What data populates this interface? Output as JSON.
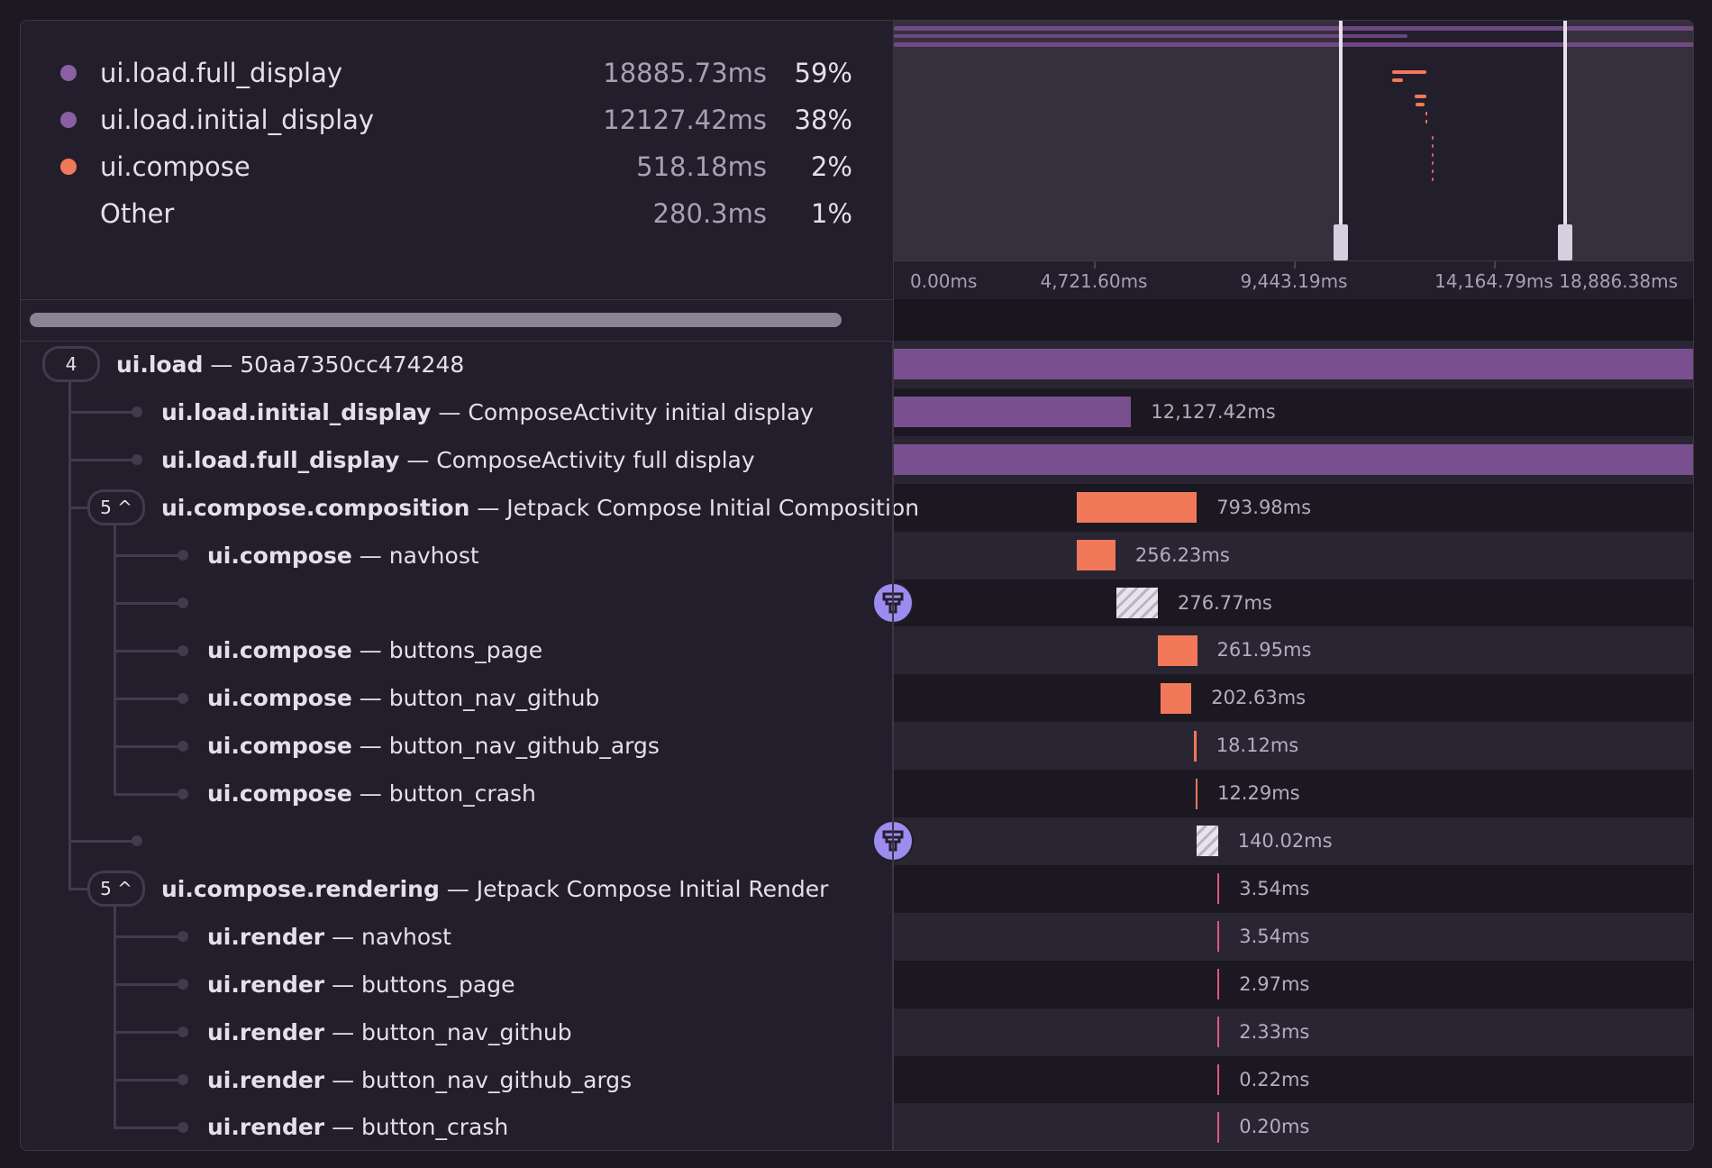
{
  "legend": [
    {
      "name": "ui.load.full_display",
      "duration": "18885.73ms",
      "percent": "59%",
      "color": "#8a5fa3"
    },
    {
      "name": "ui.load.initial_display",
      "duration": "12127.42ms",
      "percent": "38%",
      "color": "#8a5fa3"
    },
    {
      "name": "ui.compose",
      "duration": "518.18ms",
      "percent": "2%",
      "color": "#f2785a"
    },
    {
      "name": "Other",
      "duration": "280.3ms",
      "percent": "1%",
      "color": ""
    }
  ],
  "timeline": {
    "total_ms": 18886.38,
    "view_start_ms": 10553,
    "view_end_ms": 15841,
    "axis_labels": [
      "0.00ms",
      "4,721.60ms",
      "9,443.19ms",
      "14,164.79ms",
      "18,886.38ms"
    ],
    "colors": {
      "load": "#7a4f90",
      "compose": "#f2785a",
      "render": "#e2567e"
    }
  },
  "rows": [
    {
      "bold": "ui.load",
      "rest": " — 50aa7350cc474248",
      "depth": 0,
      "badge": "4",
      "start": 0,
      "dur": 18886.38,
      "kind": "load",
      "label": ""
    },
    {
      "bold": "ui.load.initial_display",
      "rest": " — ComposeActivity initial display",
      "depth": 1,
      "start": 0,
      "dur": 12127.42,
      "kind": "load",
      "label": "12,127.42ms"
    },
    {
      "bold": "ui.load.full_display",
      "rest": " — ComposeActivity full display",
      "depth": 1,
      "start": 0,
      "dur": 18885.73,
      "kind": "load",
      "label": ""
    },
    {
      "bold": "ui.compose.composition",
      "rest": " — Jetpack Compose Initial Composition",
      "depth": 1,
      "badge": "5 ^",
      "start": 11767,
      "dur": 793.98,
      "kind": "compose",
      "label": "793.98ms"
    },
    {
      "bold": "ui.compose",
      "rest": " — navhost",
      "depth": 2,
      "start": 11767,
      "dur": 256.23,
      "kind": "compose",
      "label": "256.23ms"
    },
    {
      "bold": "",
      "rest": "",
      "depth": 2,
      "gap": true,
      "start": 12027,
      "dur": 276.77,
      "kind": "gap",
      "label": "276.77ms"
    },
    {
      "bold": "ui.compose",
      "rest": " — buttons_page",
      "depth": 2,
      "start": 12301,
      "dur": 261.95,
      "kind": "compose",
      "label": "261.95ms"
    },
    {
      "bold": "ui.compose",
      "rest": " — button_nav_github",
      "depth": 2,
      "start": 12323,
      "dur": 202.63,
      "kind": "compose",
      "label": "202.63ms"
    },
    {
      "bold": "ui.compose",
      "rest": " — button_nav_github_args",
      "depth": 2,
      "start": 12540,
      "dur": 18.12,
      "kind": "compose",
      "label": "18.12ms"
    },
    {
      "bold": "ui.compose",
      "rest": " — button_crash",
      "depth": 2,
      "start": 12554,
      "dur": 12.29,
      "kind": "compose",
      "label": "12.29ms"
    },
    {
      "bold": "",
      "rest": "",
      "depth": 1,
      "gap": true,
      "start": 12561,
      "dur": 140.02,
      "kind": "gap",
      "label": "140.02ms"
    },
    {
      "bold": "ui.compose.rendering",
      "rest": " — Jetpack Compose Initial Render",
      "depth": 1,
      "badge": "5 ^",
      "start": 12698,
      "dur": 3.54,
      "kind": "render",
      "label": "3.54ms"
    },
    {
      "bold": "ui.render",
      "rest": " — navhost",
      "depth": 2,
      "start": 12698,
      "dur": 3.54,
      "kind": "render",
      "label": "3.54ms"
    },
    {
      "bold": "ui.render",
      "rest": " — buttons_page",
      "depth": 2,
      "start": 12698,
      "dur": 2.97,
      "kind": "render",
      "label": "2.97ms"
    },
    {
      "bold": "ui.render",
      "rest": " — button_nav_github",
      "depth": 2,
      "start": 12698,
      "dur": 2.33,
      "kind": "render",
      "label": "2.33ms"
    },
    {
      "bold": "ui.render",
      "rest": " — button_nav_github_args",
      "depth": 2,
      "start": 12698,
      "dur": 0.22,
      "kind": "render",
      "label": "0.22ms"
    },
    {
      "bold": "ui.render",
      "rest": " — button_crash",
      "depth": 2,
      "start": 12698,
      "dur": 0.2,
      "kind": "render",
      "label": "0.20ms"
    }
  ]
}
